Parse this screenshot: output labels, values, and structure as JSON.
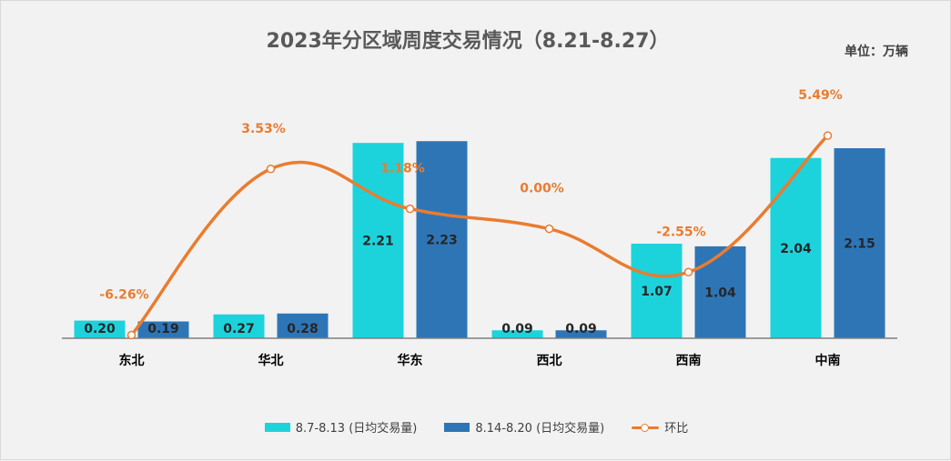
{
  "title": "2023年分区域周度交易情况（8.21-8.27）",
  "unit": "单位：万辆",
  "chart_data": {
    "type": "bar",
    "categories": [
      "东北",
      "华北",
      "华东",
      "西北",
      "西南",
      "中南"
    ],
    "series": [
      {
        "name": "8.7-8.13 (日均交易量)",
        "type": "bar",
        "color": "#1cd3dc",
        "values": [
          0.2,
          0.27,
          2.21,
          0.09,
          1.07,
          2.04
        ],
        "labels": [
          "0.20",
          "0.27",
          "2.21",
          "0.09",
          "1.07",
          "2.04"
        ]
      },
      {
        "name": "8.14-8.20 (日均交易量)",
        "type": "bar",
        "color": "#2e75b6",
        "values": [
          0.19,
          0.28,
          2.23,
          0.09,
          1.04,
          2.15
        ],
        "labels": [
          "0.19",
          "0.28",
          "2.23",
          "0.09",
          "1.04",
          "2.15"
        ]
      },
      {
        "name": "环比",
        "type": "line",
        "color": "#e97c30",
        "values": [
          -6.26,
          3.53,
          1.18,
          0.0,
          -2.55,
          5.49
        ],
        "labels": [
          "-6.26%",
          "3.53%",
          "1.18%",
          "0.00%",
          "-2.55%",
          "5.49%"
        ]
      }
    ],
    "ylim": [
      0,
      2.5
    ],
    "y2lim": [
      -8,
      7
    ],
    "legend": "bottom",
    "grid": false
  }
}
